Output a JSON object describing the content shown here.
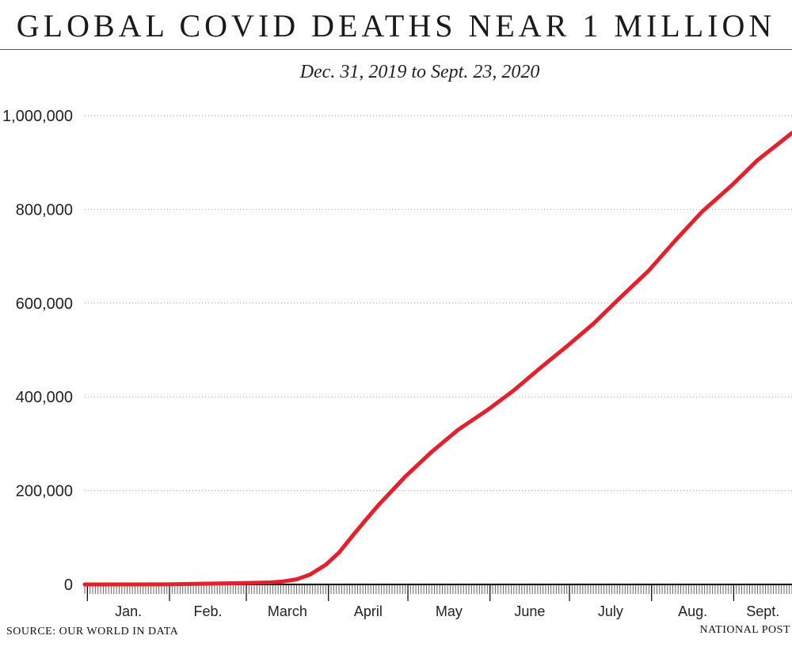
{
  "header": {
    "title": "GLOBAL COVID DEATHS NEAR 1 MILLION",
    "subtitle": "Dec. 31, 2019 to Sept. 23, 2020"
  },
  "footer": {
    "source": "SOURCE: OUR WORLD IN DATA",
    "credit": "NATIONAL POST"
  },
  "colors": {
    "line": "#e3202b",
    "grid": "#9a9a9a",
    "axis": "#000000"
  },
  "chart_data": {
    "type": "line",
    "title": "GLOBAL COVID DEATHS NEAR 1 MILLION",
    "subtitle": "Dec. 31, 2019 to Sept. 23, 2020",
    "xlabel": "",
    "ylabel": "",
    "ylim": [
      0,
      1000000
    ],
    "y_ticks": [
      0,
      200000,
      400000,
      600000,
      800000,
      1000000
    ],
    "y_tick_labels": [
      "0",
      "200,000",
      "400,000",
      "600,000",
      "800,000",
      "1,000,000"
    ],
    "x_range": [
      "2019-12-31",
      "2020-09-23"
    ],
    "x_tick_labels": [
      "Jan.",
      "Feb.",
      "March",
      "April",
      "May",
      "June",
      "July",
      "Aug.",
      "Sept."
    ],
    "month_starts": [
      "2020-01-01",
      "2020-02-01",
      "2020-03-01",
      "2020-04-01",
      "2020-05-01",
      "2020-06-01",
      "2020-07-01",
      "2020-08-01",
      "2020-09-01"
    ],
    "grid": "horizontal dotted",
    "series": [
      {
        "x": [
          "2019-12-31",
          "2020-01-31",
          "2020-02-29",
          "2020-03-10",
          "2020-03-15",
          "2020-03-20",
          "2020-03-25",
          "2020-03-31",
          "2020-04-05",
          "2020-04-10",
          "2020-04-15",
          "2020-04-20",
          "2020-04-25",
          "2020-04-30",
          "2020-05-10",
          "2020-05-20",
          "2020-05-31",
          "2020-06-10",
          "2020-06-20",
          "2020-06-30",
          "2020-07-10",
          "2020-07-20",
          "2020-07-31",
          "2020-08-10",
          "2020-08-20",
          "2020-08-31",
          "2020-09-10",
          "2020-09-23"
        ],
        "values": [
          0,
          200,
          3000,
          4300,
          6500,
          11000,
          21000,
          42000,
          68000,
          103000,
          137000,
          170000,
          200000,
          230000,
          283000,
          330000,
          372000,
          414000,
          462000,
          508000,
          556000,
          611000,
          670000,
          734000,
          795000,
          850000,
          905000,
          963000
        ]
      }
    ]
  }
}
